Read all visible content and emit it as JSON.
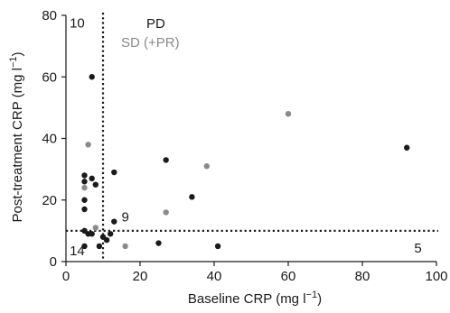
{
  "chart_data": {
    "type": "scatter",
    "xlabel": "Baseline CRP (mg l",
    "xlabel_sup": "−1",
    "xlabel_tail": ")",
    "ylabel": "Post-treatment CRP (mg l",
    "ylabel_sup": "−1",
    "ylabel_tail": ")",
    "xlim": [
      0,
      100
    ],
    "ylim": [
      0,
      80
    ],
    "x_ticks": [
      0,
      20,
      40,
      60,
      80,
      100
    ],
    "y_ticks": [
      0,
      20,
      40,
      60,
      80
    ],
    "grid": false,
    "legend_position": "top-center",
    "series": [
      {
        "name": "PD",
        "color": "#1a1a1a",
        "points": [
          {
            "x": 7,
            "y": 60
          },
          {
            "x": 5,
            "y": 28
          },
          {
            "x": 5,
            "y": 26
          },
          {
            "x": 7,
            "y": 27
          },
          {
            "x": 8,
            "y": 25
          },
          {
            "x": 13,
            "y": 29
          },
          {
            "x": 5,
            "y": 20
          },
          {
            "x": 5,
            "y": 17
          },
          {
            "x": 13,
            "y": 13
          },
          {
            "x": 5,
            "y": 10
          },
          {
            "x": 6,
            "y": 9
          },
          {
            "x": 7,
            "y": 9
          },
          {
            "x": 9,
            "y": 5
          },
          {
            "x": 10,
            "y": 8
          },
          {
            "x": 11,
            "y": 7
          },
          {
            "x": 12,
            "y": 9
          },
          {
            "x": 5,
            "y": 5
          },
          {
            "x": 27,
            "y": 33
          },
          {
            "x": 34,
            "y": 21
          },
          {
            "x": 25,
            "y": 6
          },
          {
            "x": 41,
            "y": 5
          },
          {
            "x": 92,
            "y": 37
          }
        ]
      },
      {
        "name": "SD (+PR)",
        "color": "#8a8a8a",
        "points": [
          {
            "x": 6,
            "y": 38
          },
          {
            "x": 5,
            "y": 24
          },
          {
            "x": 8,
            "y": 11
          },
          {
            "x": 16,
            "y": 5
          },
          {
            "x": 27,
            "y": 16
          },
          {
            "x": 38,
            "y": 31
          },
          {
            "x": 60,
            "y": 48
          }
        ]
      }
    ],
    "threshold_x": 10,
    "threshold_y": 10,
    "annotations": [
      {
        "text": "10",
        "x": 1,
        "y": 76
      },
      {
        "text": "9",
        "x": 15,
        "y": 13
      },
      {
        "text": "14",
        "x": 1,
        "y": 2
      },
      {
        "text": "5",
        "x": 94,
        "y": 3
      }
    ]
  }
}
